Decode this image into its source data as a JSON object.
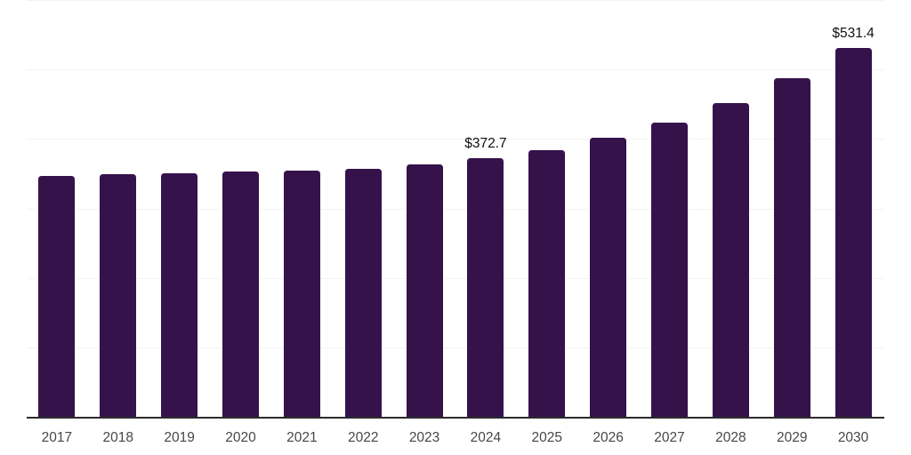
{
  "chart_data": {
    "type": "bar",
    "title": "",
    "xlabel": "",
    "ylabel": "",
    "categories": [
      "2017",
      "2018",
      "2019",
      "2020",
      "2021",
      "2022",
      "2023",
      "2024",
      "2025",
      "2026",
      "2027",
      "2028",
      "2029",
      "2030"
    ],
    "values": [
      347.5,
      349.7,
      351.2,
      353.5,
      355.6,
      357.8,
      363.8,
      372.7,
      384.6,
      402.9,
      424.7,
      451.6,
      488.0,
      531.4
    ],
    "value_labels_shown": {
      "2024": "$372.7",
      "2030": "$531.4"
    },
    "ylim": [
      0,
      600
    ],
    "gridline_values": [
      0,
      100,
      200,
      300,
      400,
      500,
      600
    ],
    "grid": "horizontal",
    "legend": "none"
  },
  "colors": {
    "background": "#ffffff",
    "bar": "#36124B",
    "gridline": "#f3f3f3",
    "axis_line": "#2b2b2b",
    "tick_label": "#474747",
    "value_label": "#111111"
  }
}
